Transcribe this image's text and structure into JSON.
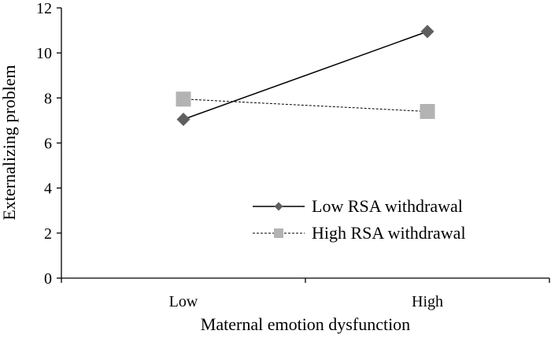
{
  "chart_data": {
    "type": "line",
    "xlabel": "Maternal emotion dysfunction",
    "ylabel": "Externalizing problem",
    "categories": [
      "Low",
      "High"
    ],
    "ylim": [
      0,
      12
    ],
    "yticks": [
      "0",
      "2",
      "4",
      "6",
      "8",
      "10",
      "12"
    ],
    "grid": false,
    "legend_position": "bottom-right",
    "series": [
      {
        "name": "Low RSA withdrawal",
        "values": [
          7.05,
          10.95
        ],
        "marker": "diamond",
        "line_style": "solid",
        "color": "#5f5f5f",
        "line_color": "#000000"
      },
      {
        "name": "High RSA withdrawal",
        "values": [
          7.95,
          7.4
        ],
        "marker": "square",
        "line_style": "dashed",
        "color": "#b3b3b3",
        "line_color": "#000000"
      }
    ]
  }
}
